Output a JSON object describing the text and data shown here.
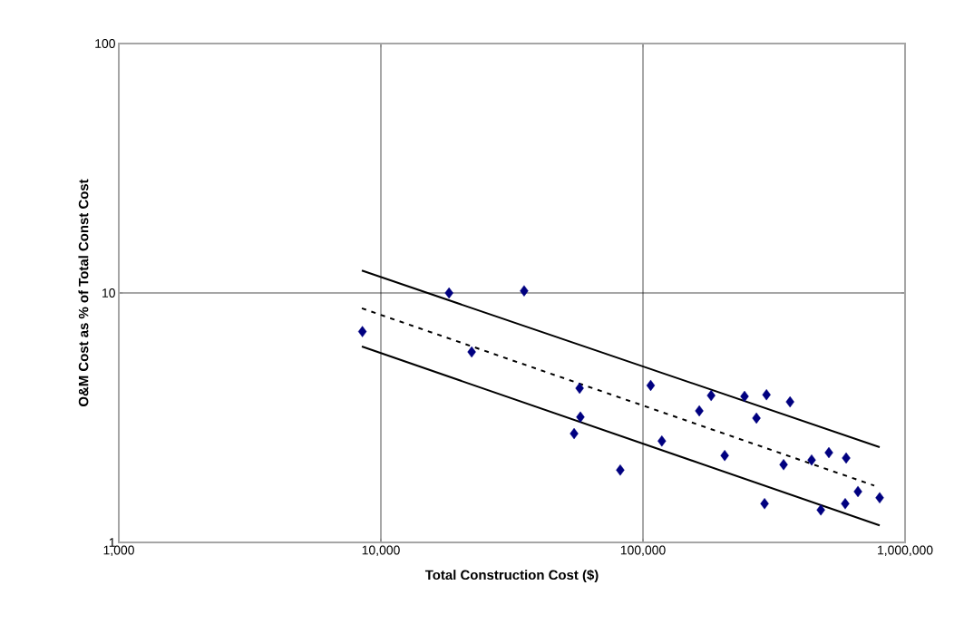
{
  "chart_data": {
    "type": "scatter",
    "xlabel": "Total Construction Cost ($)",
    "ylabel": "O&M Cost as % of Total Const Cost",
    "log": "xy",
    "grid": true,
    "xlim": [
      1000,
      1000000
    ],
    "ylim": [
      1,
      100
    ],
    "xticks": [
      {
        "value": 1000,
        "label": "1,000"
      },
      {
        "value": 10000,
        "label": "10,000"
      },
      {
        "value": 100000,
        "label": "100,000"
      },
      {
        "value": 1000000,
        "label": "1,000,000"
      }
    ],
    "yticks": [
      1,
      10,
      100
    ],
    "series": [
      {
        "color": "#000080",
        "marker": "diamond",
        "x": [
          8500,
          18200,
          35200,
          22200,
          57300,
          57700,
          54600,
          81900,
          107000,
          118000,
          164000,
          182000,
          205000,
          244000,
          271000,
          296000,
          291000,
          344000,
          364000,
          440000,
          477000,
          512000,
          591000,
          596000,
          661000,
          800000
        ],
        "values": [
          7.0,
          10.0,
          10.2,
          5.8,
          4.15,
          3.18,
          2.73,
          1.95,
          4.26,
          2.55,
          3.37,
          3.88,
          2.23,
          3.85,
          3.15,
          3.91,
          1.43,
          2.05,
          3.66,
          2.14,
          1.35,
          2.29,
          1.43,
          2.18,
          1.6,
          1.51
        ]
      },
      {
        "type": "line",
        "color": "#000000",
        "line_style": "solid",
        "marker": "none",
        "x": [
          8460,
          800000
        ],
        "values": [
          12.3,
          2.41
        ]
      },
      {
        "type": "line",
        "color": "#000000",
        "line_style": "dashed",
        "marker": "none",
        "x": [
          8460,
          763000
        ],
        "values": [
          8.68,
          1.69
        ]
      },
      {
        "type": "line",
        "color": "#000000",
        "line_style": "solid",
        "marker": "none",
        "x": [
          8460,
          800000
        ],
        "values": [
          6.1,
          1.17
        ]
      }
    ]
  }
}
